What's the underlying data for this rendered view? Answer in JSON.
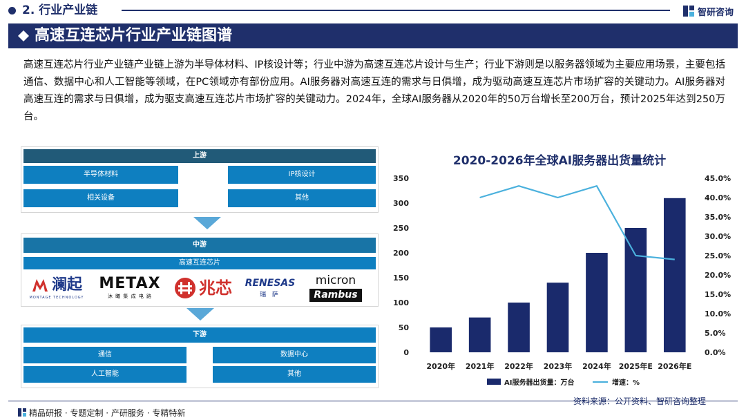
{
  "section": {
    "title": "2. 行业产业链",
    "brand": "智研咨询"
  },
  "banner": {
    "title": "高速互连芯片行业产业链图谱"
  },
  "description": "高速互连芯片行业产业链产业链上游为半导体材料、IP核设计等；行业中游为高速互连芯片设计与生产；行业下游则是以服务器领域为主要应用场景，主要包括通信、数据中心和人工智能等领域，在PC领域亦有部份应用。AI服务器对高速互连的需求与日俱增，成为驱动高速互连芯片市场扩容的关键动力。AI服务器对高速互连的需求与日俱增，成为驱支高速互连芯片市场扩容的关键动力。2024年，全球AI服务器从2020年的50万台增长至200万台，预计2025年达到250万台。",
  "chain": {
    "upstream": {
      "label": "上游",
      "items": [
        "半导体材料",
        "IP核设计",
        "相关设备",
        "其他"
      ]
    },
    "midstream": {
      "label": "中游",
      "subtitle": "高速互连芯片"
    },
    "companies": [
      {
        "name": "澜起",
        "sub": "MONTAGE TECHNOLOGY"
      },
      {
        "name": "METAX",
        "sub": "沐 曦 集 成 电 路"
      },
      {
        "name": "兆芯",
        "sub": ""
      },
      {
        "name": "RENESAS",
        "sub": "瑞 萨"
      },
      {
        "name": "micron",
        "sub": ""
      },
      {
        "name": "Rambus",
        "sub": ""
      }
    ],
    "downstream": {
      "label": "下游",
      "items": [
        "通信",
        "数据中心",
        "人工智能",
        "其他"
      ]
    }
  },
  "colors": {
    "navy": "#1f2f6b",
    "teal": "#0e7fc0",
    "headUp": "#215a78",
    "line": "#4bb1dd",
    "bar": "#1a2a6c"
  },
  "chart_data": {
    "type": "bar",
    "title": "2020-2026年全球AI服务器出货量统计",
    "categories": [
      "2020年",
      "2021年",
      "2022年",
      "2023年",
      "2024年",
      "2025年E",
      "2026年E"
    ],
    "series": [
      {
        "name": "AI服务器出货量：万台",
        "type": "bar",
        "axis": "left",
        "values": [
          50,
          70,
          100,
          140,
          200,
          250,
          310
        ]
      },
      {
        "name": "增速：%",
        "type": "line",
        "axis": "right",
        "values": [
          null,
          40.0,
          43.0,
          40.0,
          43.0,
          25.0,
          24.0
        ]
      }
    ],
    "yleft": {
      "min": 0,
      "max": 350,
      "ticks": [
        "0",
        "50",
        "100",
        "150",
        "200",
        "250",
        "300",
        "350"
      ]
    },
    "yright": {
      "min": 0,
      "max": 45,
      "ticks": [
        "0.0%",
        "5.0%",
        "10.0%",
        "15.0%",
        "20.0%",
        "25.0%",
        "30.0%",
        "35.0%",
        "40.0%",
        "45.0%"
      ]
    },
    "legend": "bottom"
  },
  "footer": {
    "left": "精品研报 · 专题定制 · 产研服务 · 专精特新",
    "source": "资料来源：公开资料、智研咨询整理"
  }
}
